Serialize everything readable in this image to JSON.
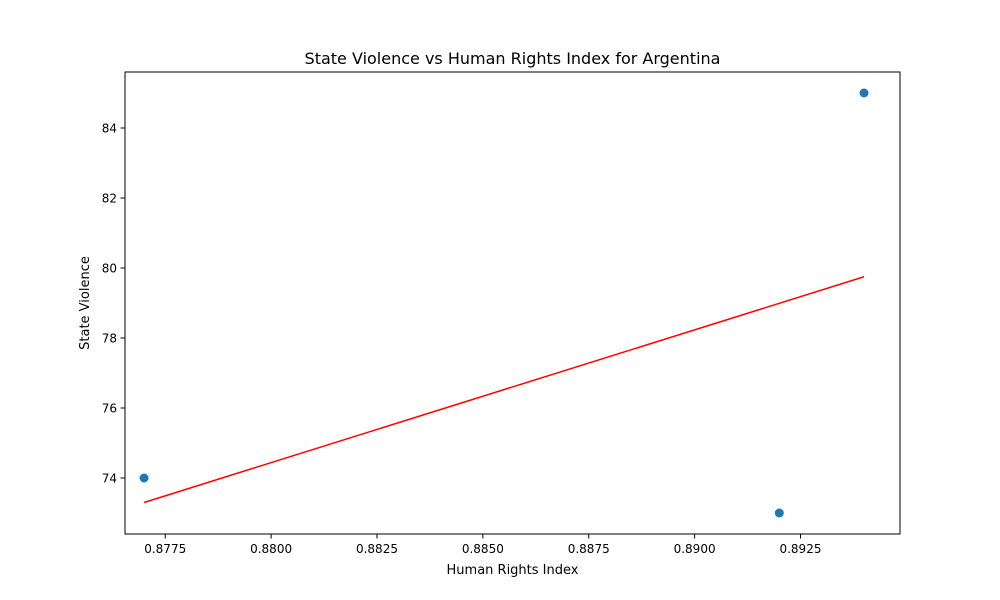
{
  "chart_data": {
    "type": "scatter",
    "title": "State Violence vs Human Rights Index for Argentina",
    "xlabel": "Human Rights Index",
    "ylabel": "State Violence",
    "xlim": [
      0.87655,
      0.89485
    ],
    "ylim": [
      72.4,
      85.6
    ],
    "x_ticks": [
      0.8775,
      0.88,
      0.8825,
      0.885,
      0.8875,
      0.89,
      0.8925
    ],
    "x_tick_labels": [
      "0.8775",
      "0.8800",
      "0.8825",
      "0.8850",
      "0.8875",
      "0.8900",
      "0.8925"
    ],
    "y_ticks": [
      74,
      76,
      78,
      80,
      82,
      84
    ],
    "y_tick_labels": [
      "74",
      "76",
      "78",
      "80",
      "82",
      "84"
    ],
    "grid": false,
    "points": [
      {
        "x": 0.877,
        "y": 74
      },
      {
        "x": 0.892,
        "y": 73
      },
      {
        "x": 0.894,
        "y": 85
      }
    ],
    "trend_line": {
      "x": [
        0.877,
        0.894
      ],
      "y": [
        73.3,
        79.75
      ]
    },
    "colors": {
      "points": "#1f77b4",
      "trend_line": "#ff0000",
      "axes": "#000000"
    }
  }
}
